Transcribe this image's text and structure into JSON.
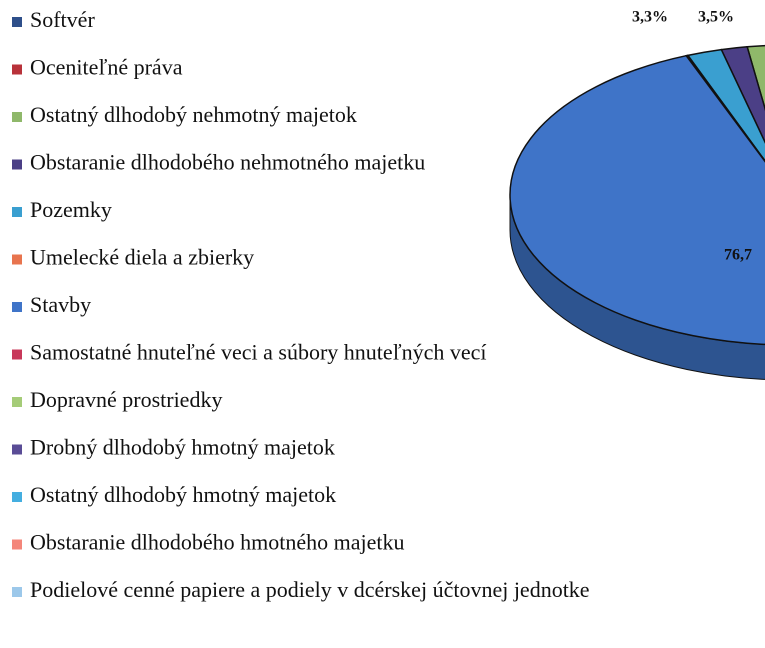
{
  "chart_data": {
    "type": "pie",
    "series": [
      {
        "name": "Softvér",
        "color": "#2e4f8a",
        "values": [
          1.2
        ]
      },
      {
        "name": "Oceniteľné práva",
        "color": "#b8323a",
        "values": [
          3.3
        ],
        "value_labels": [
          "3,3%"
        ]
      },
      {
        "name": "Ostatný dlhodobý nehmotný majetok",
        "color": "#8fb86a",
        "values": [
          3.5
        ],
        "value_labels": [
          "3,5%"
        ]
      },
      {
        "name": "Obstaranie dlhodobého nehmotného majetku",
        "color": "#4b3f86",
        "values": [
          1.5
        ]
      },
      {
        "name": "Pozemky",
        "color": "#3a9fd0",
        "values": [
          2.0
        ]
      },
      {
        "name": "Umelecké diela a zbierky",
        "color": "#e8744e",
        "values": [
          0.1
        ]
      },
      {
        "name": "Stavby",
        "color": "#3f74c8",
        "values": [
          76.7
        ],
        "value_labels": [
          "76,7"
        ]
      },
      {
        "name": "Samostatné hnuteľné veci a súbory hnuteľných vecí",
        "color": "#c8385a",
        "values": [
          5.0
        ]
      },
      {
        "name": "Dopravné prostriedky",
        "color": "#a5cc78",
        "values": [
          1.0
        ]
      },
      {
        "name": "Drobný dlhodobý hmotný majetok",
        "color": "#5a4c96",
        "values": [
          0.5
        ]
      },
      {
        "name": "Ostatný dlhodobý hmotný majetok",
        "color": "#44aee0",
        "values": [
          0.3
        ]
      },
      {
        "name": "Obstaranie dlhodobého hmotného majetku",
        "color": "#f4867a",
        "values": [
          4.0
        ]
      },
      {
        "name": "Podielové cenné papiere a podiely v dcérskej účtovnej jednotke",
        "color": "#9cc8ea",
        "values": [
          0.9
        ]
      }
    ]
  }
}
